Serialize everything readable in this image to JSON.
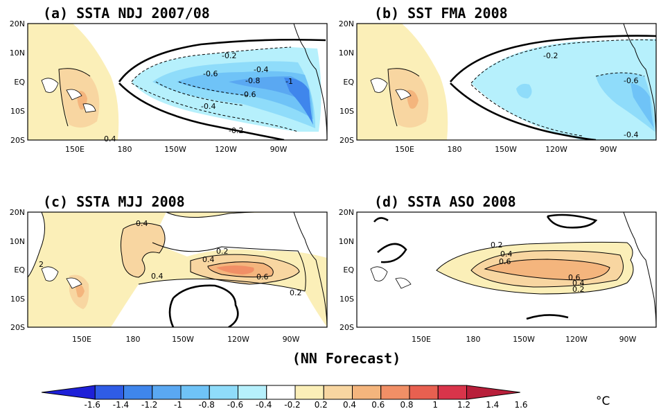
{
  "footer_label": "(NN Forecast)",
  "unit": "°C",
  "colorbar": {
    "labels": [
      "-1.6",
      "-1.4",
      "-1.2",
      "-1",
      "-0.8",
      "-0.6",
      "-0.4",
      "-0.2",
      "0.2",
      "0.4",
      "0.6",
      "0.8",
      "1",
      "1.2",
      "1.4",
      "1.6"
    ],
    "colors": [
      "#1e20d8",
      "#2f5ce6",
      "#3f86ec",
      "#5aa8f2",
      "#6fc3f7",
      "#8fdcfa",
      "#b6f0fc",
      "#ffffff",
      "#fbefb8",
      "#f8d6a1",
      "#f4b57d",
      "#f18f66",
      "#e86050",
      "#d9344a",
      "#b81f3a"
    ]
  },
  "map_ticks": {
    "lat": [
      "20N",
      "10N",
      "EQ",
      "10S",
      "20S"
    ],
    "lon": [
      "150E",
      "180",
      "150W",
      "120W",
      "90W"
    ]
  },
  "panels": [
    {
      "title": "(a) SSTA NDJ 2007/08",
      "contour_labels": [
        "-0.2",
        "-0.4",
        "-0.6",
        "-0.8",
        "-1",
        "-0.6",
        "-0.4",
        "-0.2",
        "0.4"
      ]
    },
    {
      "title": "(b) SST  FMA 2008",
      "contour_labels": [
        "-0.2",
        "-0.6",
        "-0.4"
      ]
    },
    {
      "title": "(c) SSTA MJJ 2008",
      "contour_labels": [
        "0.4",
        "0.2",
        "0.4",
        "0.4",
        "0.6",
        "0.2",
        "2"
      ]
    },
    {
      "title": "(d) SSTA ASO 2008",
      "contour_labels": [
        "0.2",
        "0.4",
        "0.6",
        "0.6",
        "0.4",
        "0.2"
      ]
    }
  ]
}
